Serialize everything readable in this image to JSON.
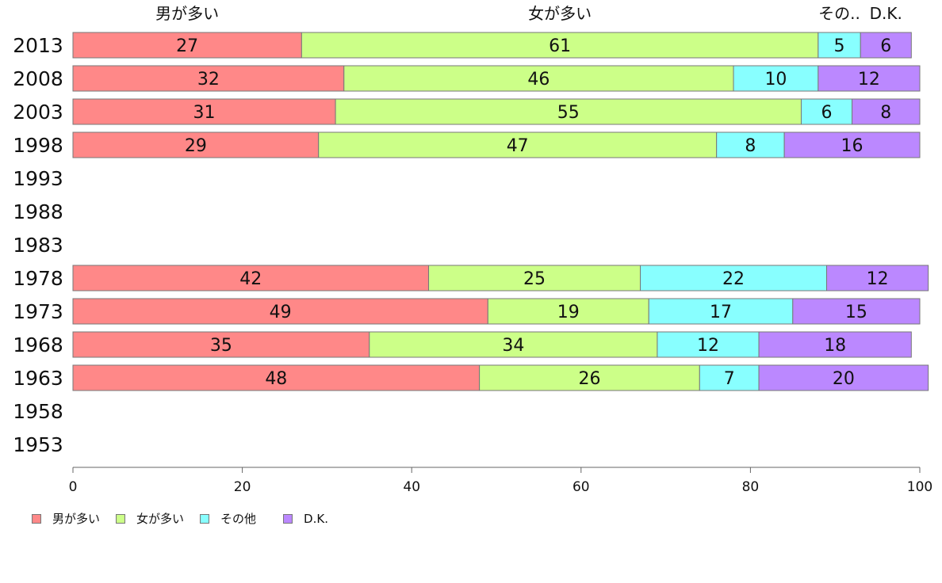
{
  "chart_data": {
    "type": "bar",
    "orientation": "horizontal",
    "stacked": true,
    "categories": [
      "2013",
      "2008",
      "2003",
      "1998",
      "1993",
      "1988",
      "1983",
      "1978",
      "1973",
      "1968",
      "1963",
      "1958",
      "1953"
    ],
    "series": [
      {
        "name": "男が多い",
        "color": "#ff8888",
        "values": [
          27,
          32,
          31,
          29,
          null,
          null,
          null,
          42,
          49,
          35,
          48,
          null,
          null
        ]
      },
      {
        "name": "女が多い",
        "color": "#ccff88",
        "values": [
          61,
          46,
          55,
          47,
          null,
          null,
          null,
          25,
          19,
          34,
          26,
          null,
          null
        ]
      },
      {
        "name": "その他",
        "color": "#88ffff",
        "values": [
          5,
          10,
          6,
          8,
          null,
          null,
          null,
          22,
          17,
          12,
          7,
          null,
          null
        ]
      },
      {
        "name": "D.K.",
        "color": "#bb88ff",
        "values": [
          6,
          12,
          8,
          16,
          null,
          null,
          null,
          12,
          15,
          18,
          20,
          null,
          null
        ]
      }
    ],
    "top_labels": [
      "男が多い",
      "女が多い",
      "その..",
      "D.K."
    ],
    "xlim": [
      0,
      100
    ],
    "xticks": [
      "0",
      "20",
      "40",
      "60",
      "80",
      "100"
    ],
    "grid": false,
    "legend_position": "bottom-left"
  },
  "legend": {
    "items": [
      {
        "label": "男が多い",
        "color": "#ff8888"
      },
      {
        "label": "女が多い",
        "color": "#ccff88"
      },
      {
        "label": "その他",
        "color": "#88ffff"
      },
      {
        "label": "D.K.",
        "color": "#bb88ff"
      }
    ]
  }
}
